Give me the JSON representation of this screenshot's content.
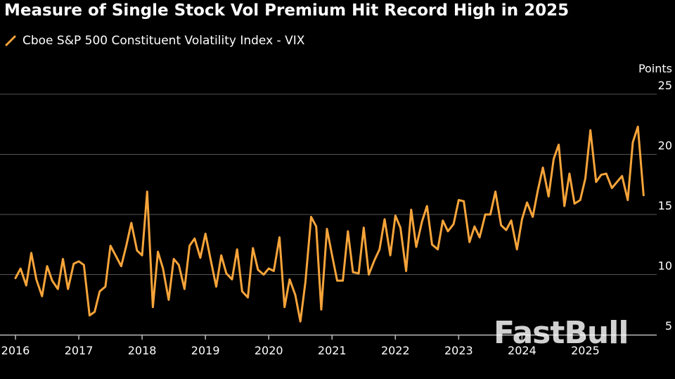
{
  "title": "Measure of Single Stock Vol Premium Hit Record High in 2025",
  "legend_label": "Cboe S&P 500 Constituent Volatility Index - VIX",
  "watermark": "FastBull",
  "colors": {
    "line": "#f7a43a",
    "grid": "#555555",
    "background": "#000000",
    "text": "#ffffff"
  },
  "chart_data": {
    "type": "line",
    "title": "Measure of Single Stock Vol Premium Hit Record High in 2025",
    "ylabel": "Points",
    "ylim": [
      5,
      25
    ],
    "yticks": [
      5,
      10,
      15,
      20,
      25
    ],
    "xlim": [
      2016,
      2025.95
    ],
    "xticks": [
      2016,
      2017,
      2018,
      2019,
      2020,
      2021,
      2022,
      2023,
      2024,
      2025
    ],
    "xtick_labels": [
      "2016",
      "2017",
      "2018",
      "2019",
      "2020",
      "2021",
      "2022",
      "2023",
      "2024",
      "2025"
    ],
    "grid": "horizontal",
    "legend": "top-left",
    "series": [
      {
        "name": "Cboe S&P 500 Constituent Volatility Index - VIX",
        "x": [
          2016.0,
          2016.08,
          2016.17,
          2016.25,
          2016.33,
          2016.42,
          2016.5,
          2016.58,
          2016.67,
          2016.75,
          2016.83,
          2016.92,
          2017.0,
          2017.08,
          2017.17,
          2017.25,
          2017.33,
          2017.42,
          2017.5,
          2017.58,
          2017.67,
          2017.75,
          2017.83,
          2017.92,
          2018.0,
          2018.08,
          2018.17,
          2018.25,
          2018.33,
          2018.42,
          2018.5,
          2018.58,
          2018.67,
          2018.75,
          2018.83,
          2018.92,
          2019.0,
          2019.08,
          2019.17,
          2019.25,
          2019.33,
          2019.42,
          2019.5,
          2019.58,
          2019.67,
          2019.75,
          2019.83,
          2019.92,
          2020.0,
          2020.08,
          2020.17,
          2020.25,
          2020.33,
          2020.42,
          2020.5,
          2020.58,
          2020.67,
          2020.75,
          2020.83,
          2020.92,
          2021.0,
          2021.08,
          2021.17,
          2021.25,
          2021.33,
          2021.42,
          2021.5,
          2021.58,
          2021.67,
          2021.75,
          2021.83,
          2021.92,
          2022.0,
          2022.08,
          2022.17,
          2022.25,
          2022.33,
          2022.42,
          2022.5,
          2022.58,
          2022.67,
          2022.75,
          2022.83,
          2022.92,
          2023.0,
          2023.08,
          2023.17,
          2023.25,
          2023.33,
          2023.42,
          2023.5,
          2023.58,
          2023.67,
          2023.75,
          2023.83,
          2023.92,
          2024.0,
          2024.08,
          2024.17,
          2024.25,
          2024.33,
          2024.42,
          2024.5,
          2024.58,
          2024.67,
          2024.75,
          2024.83,
          2024.92,
          2025.0,
          2025.08,
          2025.17,
          2025.25,
          2025.33,
          2025.42,
          2025.5,
          2025.58,
          2025.67,
          2025.75,
          2025.83,
          2025.92
        ],
        "y": [
          9.7,
          10.5,
          9.1,
          11.8,
          9.6,
          8.2,
          10.7,
          9.5,
          8.8,
          11.3,
          8.8,
          10.9,
          11.1,
          10.8,
          6.6,
          6.9,
          8.6,
          9.0,
          12.4,
          11.6,
          10.7,
          12.4,
          14.3,
          12.0,
          11.6,
          16.9,
          7.3,
          11.9,
          10.5,
          7.9,
          11.3,
          10.8,
          8.8,
          12.4,
          13.0,
          11.4,
          13.4,
          11.3,
          9.0,
          11.6,
          10.1,
          9.6,
          12.1,
          8.6,
          8.1,
          12.2,
          10.4,
          10.0,
          10.5,
          10.3,
          13.1,
          7.3,
          9.6,
          8.3,
          6.1,
          9.4,
          14.8,
          14.0,
          7.1,
          13.8,
          11.6,
          9.5,
          9.5,
          13.6,
          10.2,
          10.1,
          13.9,
          10.0,
          11.2,
          12.1,
          14.6,
          11.6,
          14.9,
          13.9,
          10.3,
          15.4,
          12.3,
          14.4,
          15.7,
          12.5,
          12.1,
          14.5,
          13.6,
          14.2,
          16.2,
          16.1,
          12.7,
          14.0,
          13.1,
          15.0,
          15.0,
          16.9,
          14.1,
          13.7,
          14.5,
          12.1,
          14.6,
          16.0,
          14.8,
          17.0,
          18.9,
          16.5,
          19.6,
          20.8,
          15.7,
          18.4,
          15.9,
          16.2,
          18.0,
          22.0,
          17.7,
          18.3,
          18.4,
          17.2,
          17.7,
          18.2,
          16.2,
          21.0,
          22.3,
          16.6
        ]
      }
    ]
  }
}
